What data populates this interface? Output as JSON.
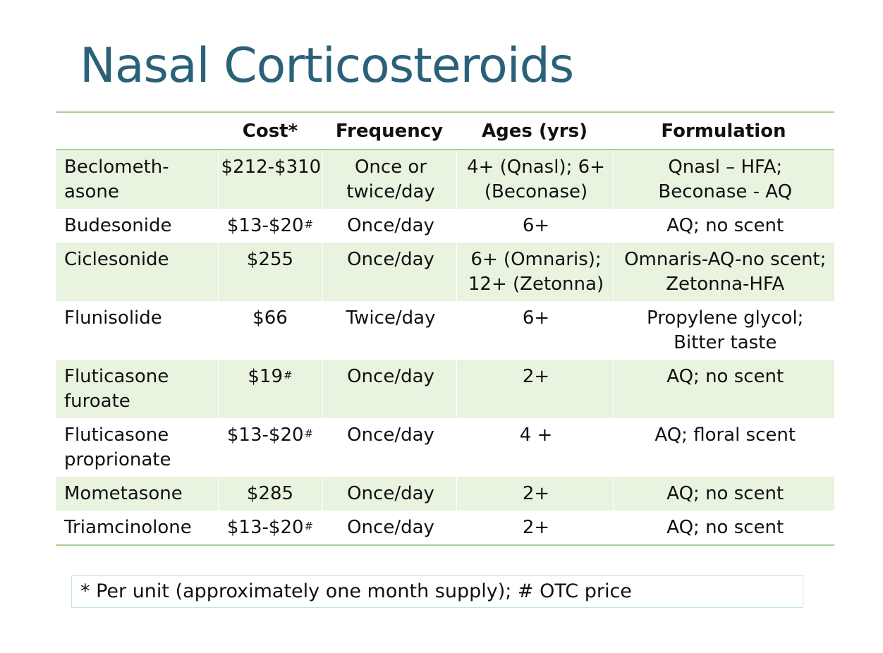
{
  "title": "Nasal Corticosteroids",
  "colors": {
    "title": "#2a6179",
    "shade_row": "#e8f3e0",
    "rule": "#a9cf94",
    "footnote_border": "#bfe3ea"
  },
  "table": {
    "headers": [
      "",
      "Cost*",
      "Frequency",
      "Ages (yrs)",
      "Formulation"
    ],
    "rows": [
      {
        "name": "Beclometh-asone",
        "cost": "$212-$310",
        "cost_mark": "",
        "frequency": "Once or twice/day",
        "ages": "4+ (Qnasl); 6+ (Beconase)",
        "formulation": "Qnasl – HFA; Beconase - AQ"
      },
      {
        "name": "Budesonide",
        "cost": "$13-$20",
        "cost_mark": "#",
        "frequency": "Once/day",
        "ages": "6+",
        "formulation": "AQ; no scent"
      },
      {
        "name": "Ciclesonide",
        "cost": "$255",
        "cost_mark": "",
        "frequency": "Once/day",
        "ages": "6+ (Omnaris); 12+ (Zetonna)",
        "formulation": "Omnaris-AQ-no scent; Zetonna-HFA"
      },
      {
        "name": "Flunisolide",
        "cost": "$66",
        "cost_mark": "",
        "frequency": "Twice/day",
        "ages": "6+",
        "formulation": "Propylene glycol; Bitter taste"
      },
      {
        "name": "Fluticasone furoate",
        "cost": "$19",
        "cost_mark": "#",
        "frequency": "Once/day",
        "ages": "2+",
        "formulation": "AQ; no scent"
      },
      {
        "name": "Fluticasone proprionate",
        "cost": "$13-$20",
        "cost_mark": "#",
        "frequency": "Once/day",
        "ages": "4 +",
        "formulation": "AQ; floral scent"
      },
      {
        "name": "Mometasone",
        "cost": "$285",
        "cost_mark": "",
        "frequency": "Once/day",
        "ages": "2+",
        "formulation": "AQ; no scent"
      },
      {
        "name": "Triamcinolone",
        "cost": "$13-$20",
        "cost_mark": "#",
        "frequency": "Once/day",
        "ages": "2+",
        "formulation": "AQ; no scent"
      }
    ]
  },
  "footnote": "* Per unit (approximately one month supply); # OTC price"
}
